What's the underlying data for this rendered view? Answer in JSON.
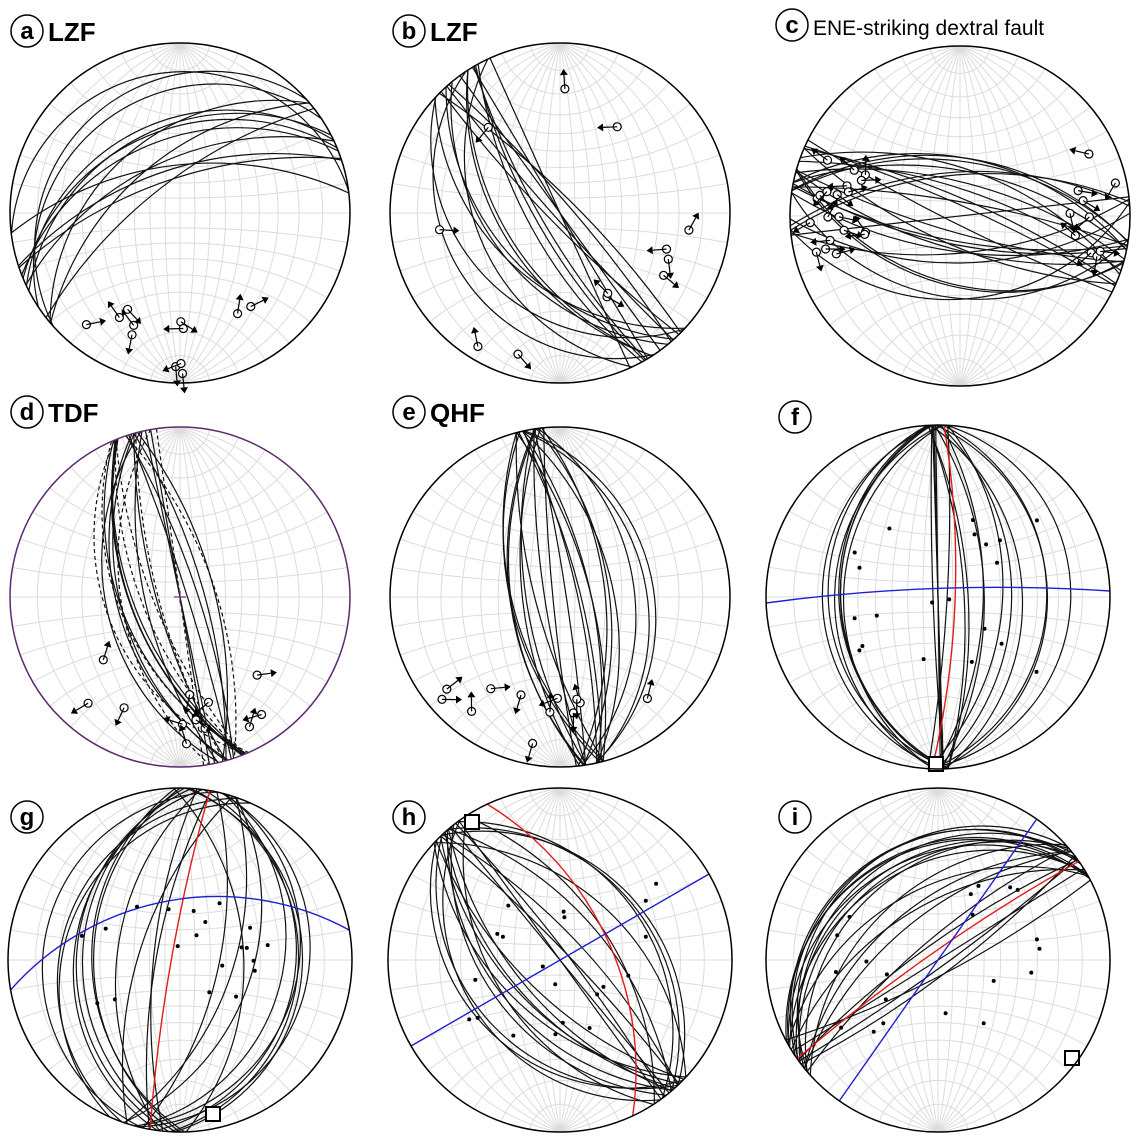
{
  "colors": {
    "grid": "#dcdcdc",
    "trace": "#111111",
    "circle": "#000000",
    "circle_d": "#5b2b6e",
    "red_trace": "#e31a1c",
    "blue_trace": "#1f1fd0",
    "background": "#ffffff"
  },
  "panels": [
    {
      "letter": "a",
      "title": "LZF",
      "kind": "fault-slip",
      "circle_color": "circle"
    },
    {
      "letter": "b",
      "title": "LZF",
      "kind": "fault-slip",
      "circle_color": "circle"
    },
    {
      "letter": "c",
      "title": "ENE-striking dextral fault",
      "kind": "fault-slip",
      "circle_color": "circle"
    },
    {
      "letter": "d",
      "title": "TDF",
      "kind": "fault-slip",
      "circle_color": "circle_d",
      "has_center_cross": true
    },
    {
      "letter": "e",
      "title": "QHF",
      "kind": "fault-slip",
      "circle_color": "circle"
    },
    {
      "letter": "f",
      "title": "",
      "kind": "pole-analysis",
      "circle_color": "circle"
    },
    {
      "letter": "g",
      "title": "",
      "kind": "pole-analysis",
      "circle_color": "circle"
    },
    {
      "letter": "h",
      "title": "",
      "kind": "pole-analysis",
      "circle_color": "circle"
    },
    {
      "letter": "i",
      "title": "",
      "kind": "pole-analysis",
      "circle_color": "circle"
    }
  ]
}
